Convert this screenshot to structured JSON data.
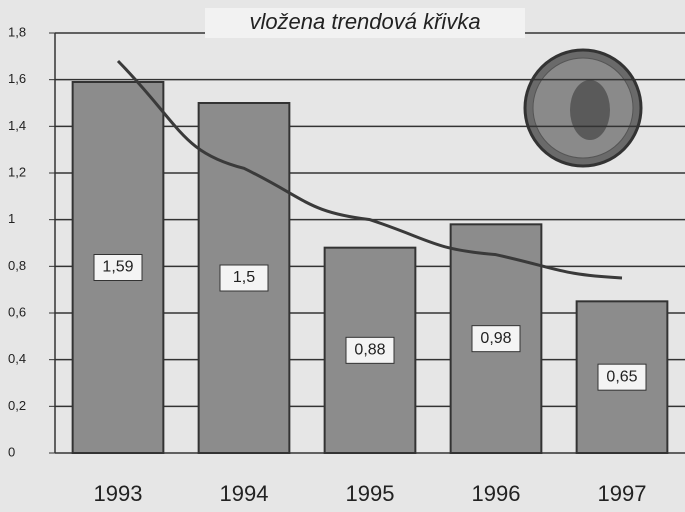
{
  "chart_data": {
    "type": "bar",
    "title": "vložena trendová křivka",
    "categories": [
      "1993",
      "1994",
      "1995",
      "1996",
      "1997"
    ],
    "values": [
      1.59,
      1.5,
      0.88,
      0.98,
      0.65
    ],
    "value_labels": [
      "1,59",
      "1,5",
      "0,88",
      "0,98",
      "0,65"
    ],
    "color": "#8c8c8c",
    "trend": {
      "values": [
        1.68,
        1.22,
        1.0,
        0.85,
        0.75
      ],
      "color": "#3a3a3a"
    },
    "ylim": [
      0,
      1.8
    ],
    "yticks": [
      0,
      {
        "value": 0.2,
        "label": "0,2"
      },
      {
        "value": 0.4,
        "label": "0,4"
      },
      {
        "value": 0.6,
        "label": "0,6"
      },
      {
        "value": 0.8,
        "label": "0,8"
      },
      1,
      {
        "value": 1.2,
        "label": "1,2"
      },
      {
        "value": 1.4,
        "label": "1,4"
      },
      {
        "value": 1.6,
        "label": "1,6"
      },
      {
        "value": 1.8,
        "label": "1,8"
      }
    ],
    "grid": true
  }
}
